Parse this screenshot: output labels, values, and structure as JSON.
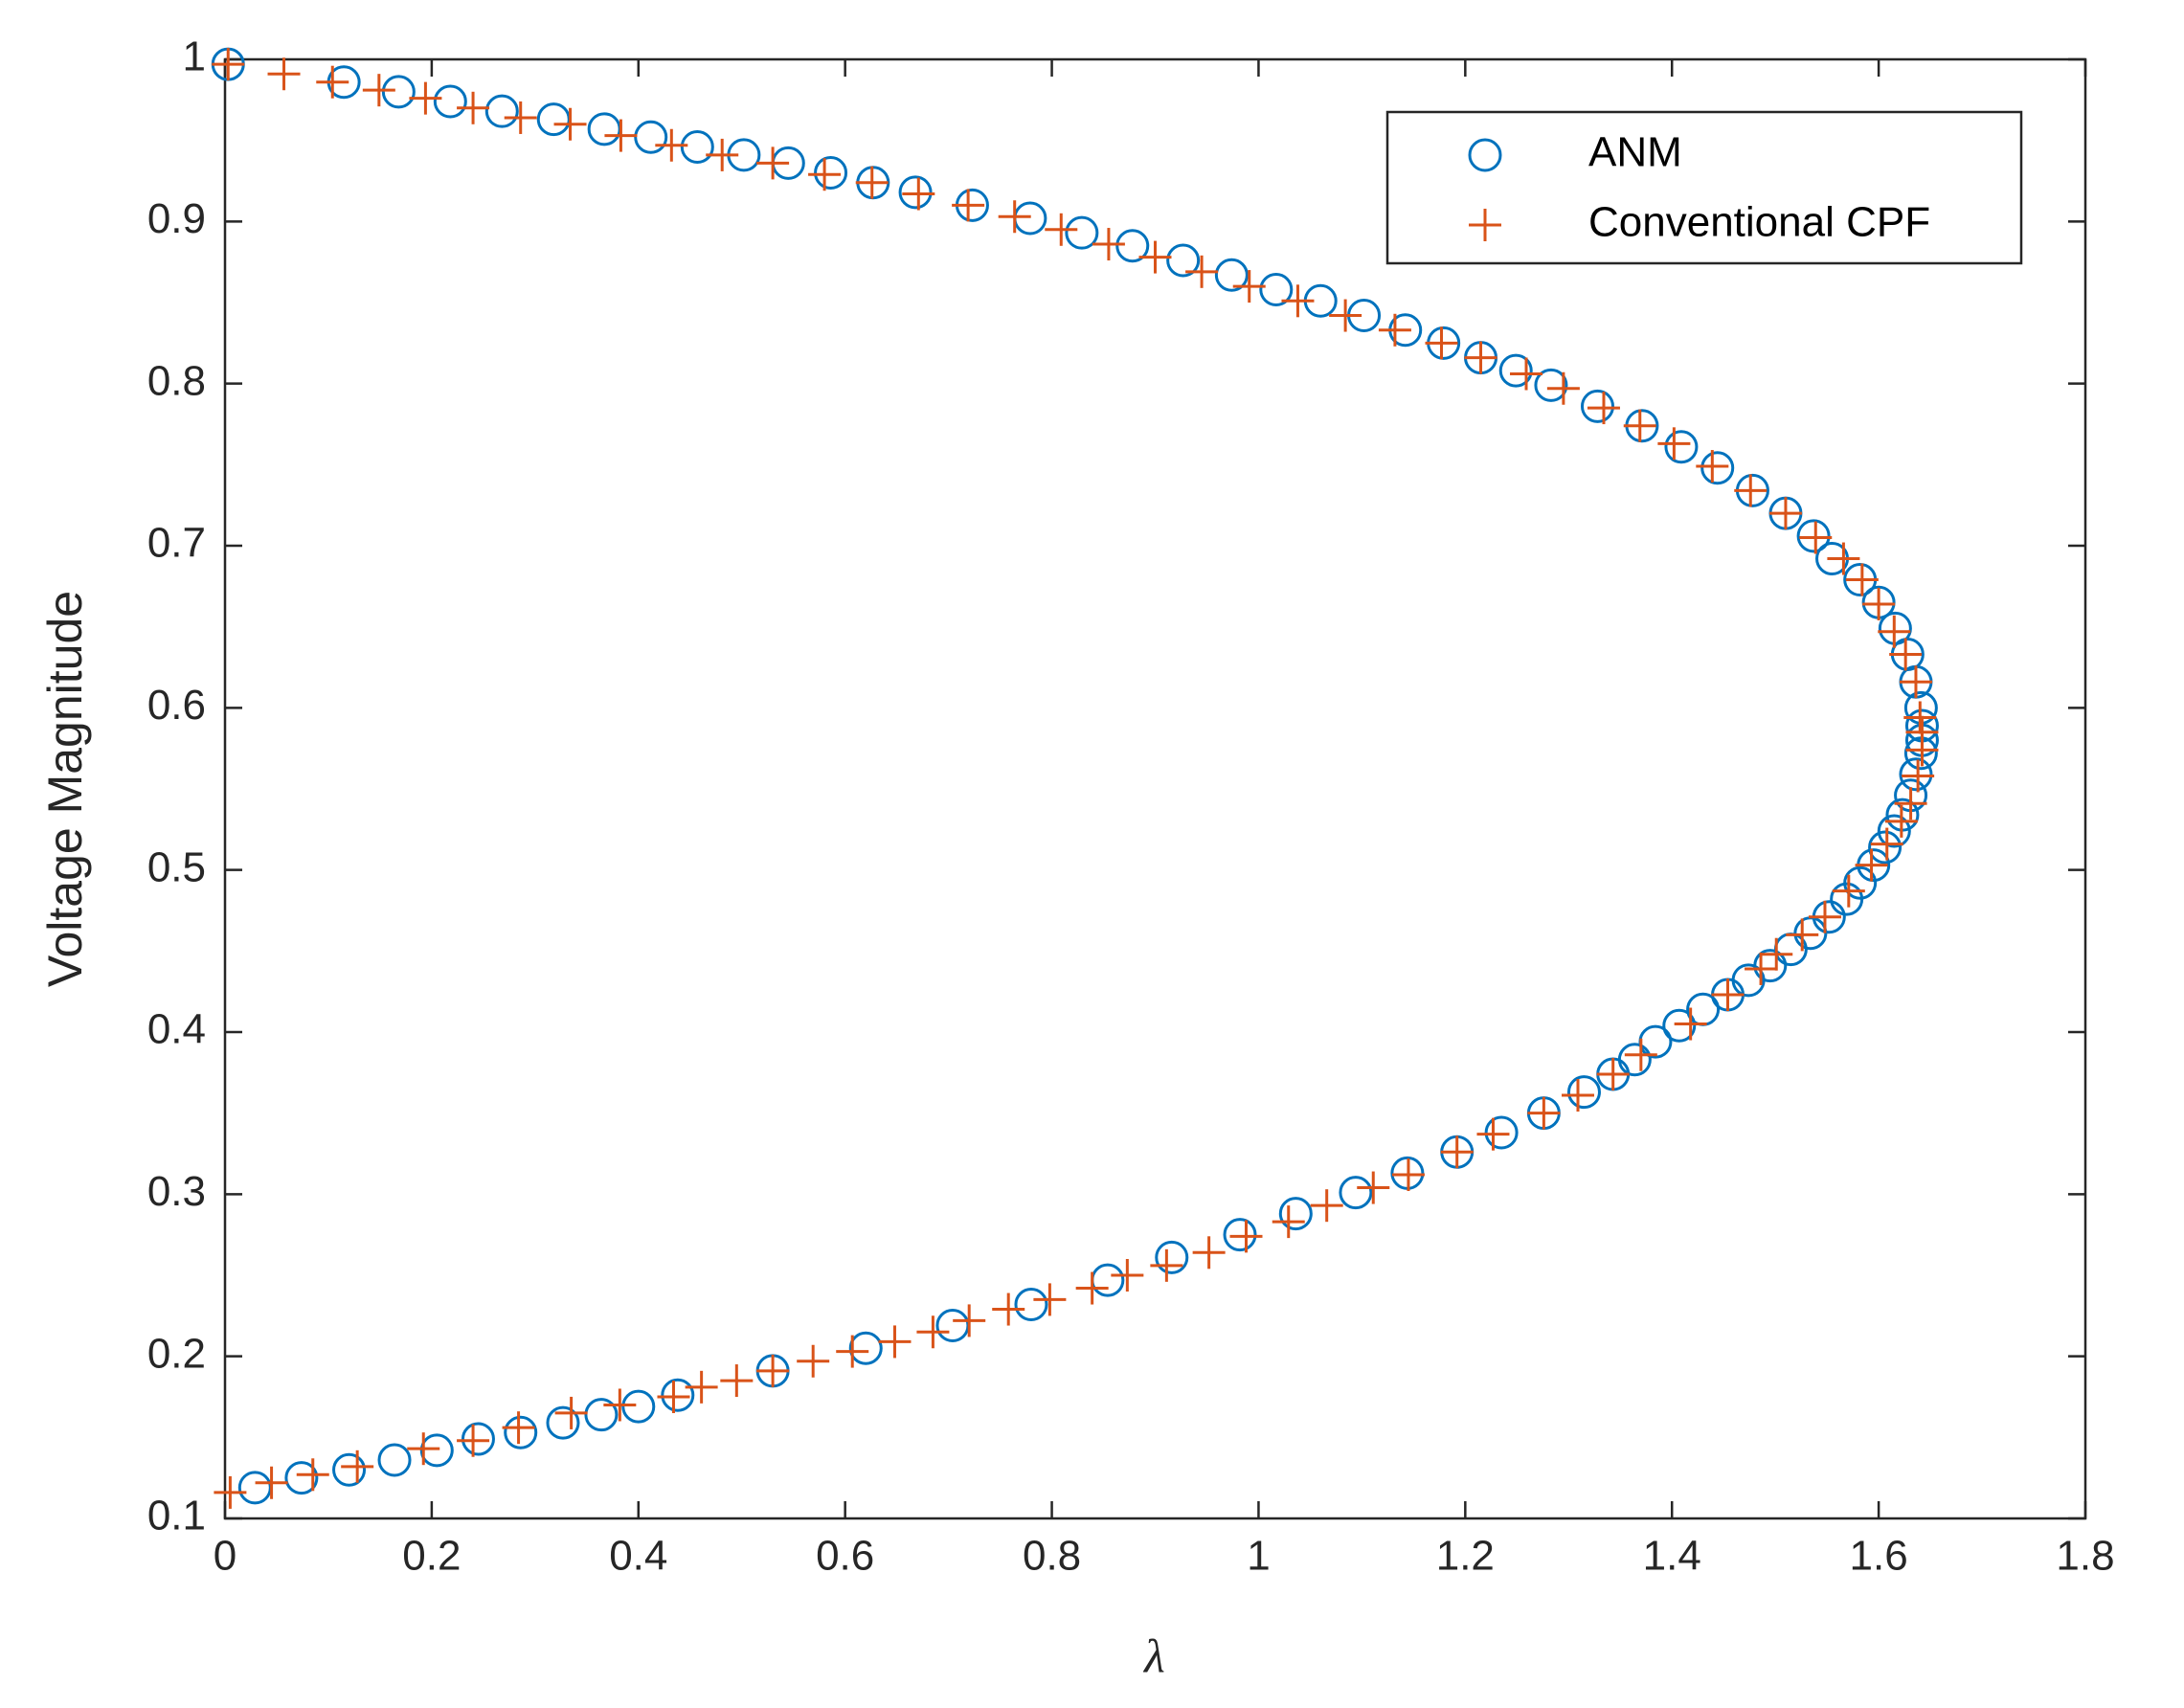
{
  "chart_data": {
    "type": "scatter",
    "x_label": "λ",
    "y_label": "Voltage Magnitude",
    "xlim": [
      0,
      1.8
    ],
    "ylim": [
      0.1,
      1
    ],
    "xticks": [
      0,
      0.2,
      0.4,
      0.6,
      0.8,
      1,
      1.2,
      1.4,
      1.6,
      1.8
    ],
    "yticks": [
      0.1,
      0.2,
      0.3,
      0.4,
      0.5,
      0.6,
      0.7,
      0.8,
      0.9,
      1
    ],
    "grid": false,
    "legend_position": "upper right",
    "series": [
      {
        "name": "ANM",
        "color": "#0072BD",
        "marker": "o",
        "x": [
          0.003,
          0.115,
          0.168,
          0.218,
          0.268,
          0.318,
          0.367,
          0.412,
          0.457,
          0.502,
          0.545,
          0.586,
          0.627,
          0.668,
          0.723,
          0.779,
          0.829,
          0.878,
          0.927,
          0.974,
          1.017,
          1.06,
          1.102,
          1.142,
          1.179,
          1.215,
          1.249,
          1.283,
          1.328,
          1.371,
          1.409,
          1.444,
          1.478,
          1.51,
          1.537,
          1.555,
          1.582,
          1.6,
          1.616,
          1.628,
          1.636,
          1.641,
          1.642,
          1.642,
          1.641,
          1.636,
          1.631,
          1.623,
          1.615,
          1.606,
          1.595,
          1.582,
          1.569,
          1.552,
          1.534,
          1.515,
          1.495,
          1.474,
          1.454,
          1.43,
          1.407,
          1.384,
          1.364,
          1.343,
          1.315,
          1.276,
          1.235,
          1.192,
          1.144,
          1.094,
          1.036,
          0.982,
          0.916,
          0.854,
          0.78,
          0.704,
          0.62,
          0.53,
          0.438,
          0.4,
          0.364,
          0.327,
          0.286,
          0.245,
          0.205,
          0.164,
          0.12,
          0.074,
          0.029
        ],
        "y": [
          0.997,
          0.986,
          0.98,
          0.974,
          0.968,
          0.963,
          0.957,
          0.952,
          0.946,
          0.941,
          0.936,
          0.93,
          0.924,
          0.918,
          0.91,
          0.902,
          0.893,
          0.885,
          0.876,
          0.867,
          0.858,
          0.851,
          0.842,
          0.833,
          0.825,
          0.816,
          0.808,
          0.799,
          0.786,
          0.774,
          0.761,
          0.748,
          0.734,
          0.72,
          0.706,
          0.692,
          0.679,
          0.665,
          0.649,
          0.633,
          0.616,
          0.6,
          0.589,
          0.58,
          0.572,
          0.559,
          0.546,
          0.534,
          0.524,
          0.514,
          0.503,
          0.492,
          0.482,
          0.471,
          0.461,
          0.451,
          0.441,
          0.432,
          0.423,
          0.414,
          0.404,
          0.394,
          0.383,
          0.374,
          0.363,
          0.35,
          0.338,
          0.326,
          0.313,
          0.301,
          0.288,
          0.275,
          0.261,
          0.247,
          0.232,
          0.219,
          0.205,
          0.191,
          0.176,
          0.169,
          0.164,
          0.159,
          0.153,
          0.149,
          0.142,
          0.136,
          0.13,
          0.125,
          0.119
        ]
      },
      {
        "name": "Conventional CPF",
        "color": "#D95319",
        "marker": "+",
        "x": [
          0.003,
          0.057,
          0.104,
          0.149,
          0.194,
          0.24,
          0.286,
          0.334,
          0.383,
          0.432,
          0.481,
          0.53,
          0.58,
          0.626,
          0.671,
          0.719,
          0.764,
          0.809,
          0.855,
          0.9,
          0.945,
          0.991,
          1.038,
          1.084,
          1.132,
          1.177,
          1.215,
          1.259,
          1.295,
          1.334,
          1.369,
          1.402,
          1.439,
          1.476,
          1.51,
          1.539,
          1.566,
          1.584,
          1.6,
          1.615,
          1.626,
          1.636,
          1.64,
          1.642,
          1.642,
          1.638,
          1.631,
          1.622,
          1.608,
          1.593,
          1.571,
          1.548,
          1.526,
          1.501,
          1.486,
          1.454,
          1.418,
          1.37,
          1.343,
          1.309,
          1.276,
          1.227,
          1.192,
          1.145,
          1.111,
          1.066,
          1.029,
          0.988,
          0.952,
          0.911,
          0.873,
          0.839,
          0.798,
          0.758,
          0.72,
          0.685,
          0.648,
          0.607,
          0.569,
          0.53,
          0.495,
          0.461,
          0.434,
          0.382,
          0.335,
          0.284,
          0.24,
          0.192,
          0.128,
          0.085,
          0.045,
          0.005
        ],
        "y": [
          0.997,
          0.991,
          0.986,
          0.981,
          0.976,
          0.97,
          0.964,
          0.96,
          0.953,
          0.947,
          0.941,
          0.936,
          0.929,
          0.924,
          0.917,
          0.91,
          0.903,
          0.895,
          0.886,
          0.878,
          0.869,
          0.86,
          0.851,
          0.842,
          0.833,
          0.825,
          0.816,
          0.806,
          0.797,
          0.785,
          0.774,
          0.763,
          0.749,
          0.734,
          0.72,
          0.705,
          0.692,
          0.679,
          0.664,
          0.647,
          0.633,
          0.616,
          0.594,
          0.585,
          0.574,
          0.558,
          0.541,
          0.53,
          0.516,
          0.503,
          0.487,
          0.471,
          0.46,
          0.448,
          0.439,
          0.423,
          0.405,
          0.386,
          0.374,
          0.361,
          0.35,
          0.337,
          0.326,
          0.312,
          0.304,
          0.293,
          0.283,
          0.274,
          0.264,
          0.256,
          0.25,
          0.242,
          0.235,
          0.229,
          0.222,
          0.215,
          0.209,
          0.203,
          0.197,
          0.191,
          0.185,
          0.181,
          0.175,
          0.17,
          0.165,
          0.156,
          0.148,
          0.143,
          0.132,
          0.127,
          0.122,
          0.116
        ]
      }
    ]
  }
}
